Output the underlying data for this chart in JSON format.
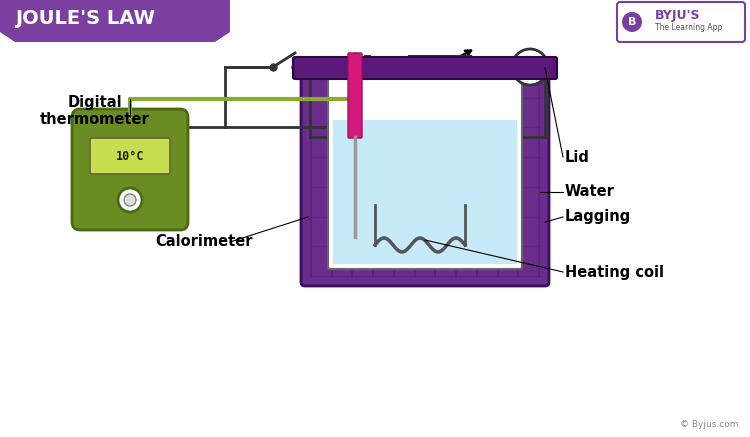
{
  "title": "JOULE'S LAW",
  "title_bg": "#7B3FA0",
  "title_fg": "#FFFFFF",
  "bg_color": "#FFFFFF",
  "byju_purple": "#7B3FA0",
  "labels": {
    "digital_thermometer": "Digital\nthermometer",
    "calorimeter": "Calorimeter",
    "lid": "Lid",
    "water": "Water",
    "lagging": "Lagging",
    "heating_coil": "Heating coil"
  },
  "colors": {
    "purple": "#6B2D8B",
    "green_device": "#6B8C23",
    "green_display": "#C8DC50",
    "pink_probe": "#D6187A",
    "water_blue": "#C0E8F8",
    "resistor_gold": "#F0A820",
    "wire_dark": "#333333",
    "lid_purple": "#5A1878",
    "coil_gray": "#555555",
    "therm_wire": "#8AAA30"
  }
}
